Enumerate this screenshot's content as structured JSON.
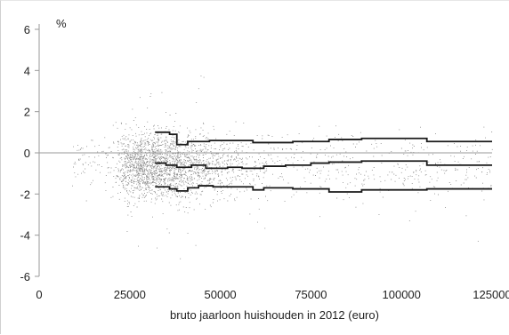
{
  "chart_data": {
    "type": "scatter",
    "title": "",
    "xlabel": "bruto jaarloon huishouden in 2012 (euro)",
    "ylabel": "%",
    "xlim": [
      0,
      125000
    ],
    "ylim": [
      -6,
      6
    ],
    "x_ticks": [
      0,
      25000,
      50000,
      75000,
      100000,
      125000
    ],
    "x_tick_labels": [
      "0",
      "25000",
      "50000",
      "75000",
      "100000",
      "125000"
    ],
    "y_ticks": [
      -6,
      -4,
      -2,
      0,
      2,
      4,
      6
    ],
    "y_tick_labels": [
      "-6",
      "-4",
      "-2",
      "0",
      "2",
      "4",
      "6"
    ],
    "grid": false,
    "colors": {
      "points": "#8a8a8a",
      "lines": "#1a1a1a",
      "zero_line": "#9a9a9a",
      "axis": "#9a9a9a"
    },
    "scatter_cloud": {
      "description_value_range_x": [
        9000,
        125000
      ],
      "approx_point_count": 6000
    },
    "series": [
      {
        "role": "upper",
        "x": [
          32000,
          36000,
          38000,
          41000,
          47000,
          59000,
          65000,
          70000,
          80000,
          89000,
          107000,
          125000
        ],
        "y": [
          1.0,
          0.9,
          0.4,
          0.55,
          0.6,
          0.5,
          0.5,
          0.55,
          0.65,
          0.7,
          0.55,
          0.55
        ]
      },
      {
        "role": "median",
        "x": [
          32000,
          35000,
          38000,
          42000,
          46000,
          52000,
          56000,
          62000,
          68000,
          75000,
          80000,
          89000,
          107000,
          125000
        ],
        "y": [
          -0.5,
          -0.6,
          -0.7,
          -0.6,
          -0.75,
          -0.7,
          -0.75,
          -0.65,
          -0.6,
          -0.5,
          -0.45,
          -0.4,
          -0.6,
          -0.6
        ]
      },
      {
        "role": "lower",
        "x": [
          32000,
          36000,
          38000,
          41000,
          44000,
          48000,
          59000,
          62000,
          70000,
          80000,
          89000,
          107000,
          125000
        ],
        "y": [
          -1.65,
          -1.75,
          -1.85,
          -1.7,
          -1.6,
          -1.65,
          -1.8,
          -1.7,
          -1.75,
          -1.9,
          -1.8,
          -1.75,
          -1.75
        ]
      }
    ]
  }
}
